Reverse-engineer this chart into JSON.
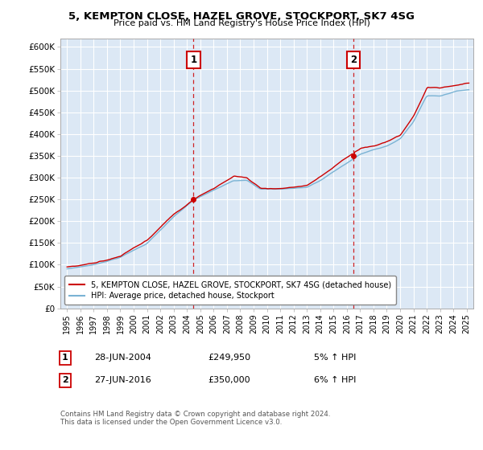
{
  "title1": "5, KEMPTON CLOSE, HAZEL GROVE, STOCKPORT, SK7 4SG",
  "title2": "Price paid vs. HM Land Registry's House Price Index (HPI)",
  "ylabel_ticks": [
    "£0",
    "£50K",
    "£100K",
    "£150K",
    "£200K",
    "£250K",
    "£300K",
    "£350K",
    "£400K",
    "£450K",
    "£500K",
    "£550K",
    "£600K"
  ],
  "ytick_values": [
    0,
    50000,
    100000,
    150000,
    200000,
    250000,
    300000,
    350000,
    400000,
    450000,
    500000,
    550000,
    600000
  ],
  "ylim": [
    0,
    620000
  ],
  "xlim_start": 1994.5,
  "xlim_end": 2025.5,
  "sale1_year": 2004.49,
  "sale1_price": 249950,
  "sale1_label": "1",
  "sale1_date": "28-JUN-2004",
  "sale2_year": 2016.49,
  "sale2_price": 350000,
  "sale2_label": "2",
  "sale2_date": "27-JUN-2016",
  "hpi_color": "#7ab3d4",
  "price_color": "#cc0000",
  "bg_color": "#dce8f5",
  "grid_color": "#ffffff",
  "legend_label1": "5, KEMPTON CLOSE, HAZEL GROVE, STOCKPORT, SK7 4SG (detached house)",
  "legend_label2": "HPI: Average price, detached house, Stockport",
  "footer1": "Contains HM Land Registry data © Crown copyright and database right 2024.",
  "footer2": "This data is licensed under the Open Government Licence v3.0."
}
